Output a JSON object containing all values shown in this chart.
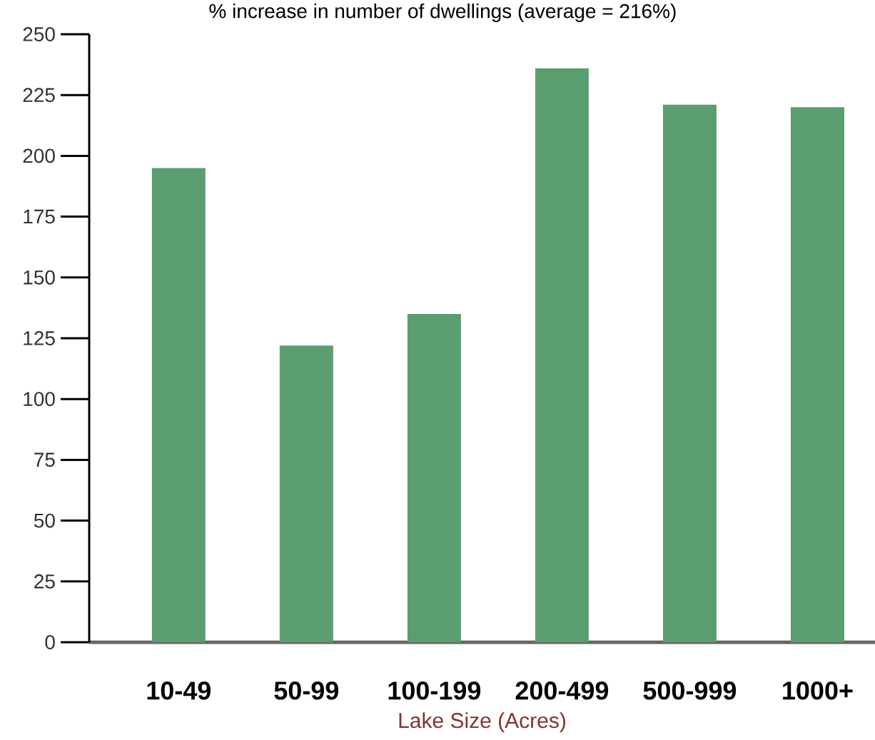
{
  "chart_data": {
    "type": "bar",
    "title": "% increase in number of dwellings (average = 216%)",
    "xlabel": "Lake Size (Acres)",
    "categories": [
      "10-49",
      "50-99",
      "100-199",
      "200-499",
      "500-999",
      "1000+"
    ],
    "values": [
      195,
      122,
      135,
      236,
      221,
      220
    ],
    "color": "#5a9e6f",
    "ylim": [
      0,
      250
    ],
    "yticks": [
      0,
      25,
      50,
      75,
      100,
      125,
      150,
      175,
      200,
      225,
      250
    ],
    "grid": false
  }
}
